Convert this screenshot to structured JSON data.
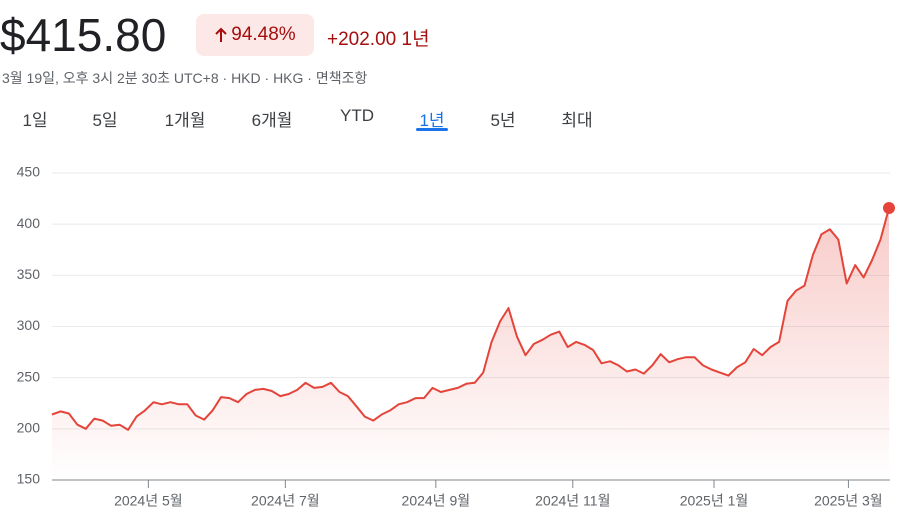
{
  "header": {
    "price": "$415.80",
    "change_percent": "94.48%",
    "change": "+202.00",
    "period": "1년",
    "timestamp": "3월 19일, 오후 3시 2분 30초 UTC+8 · HKD · HKG · 면책조항"
  },
  "tabs": {
    "items": [
      "1일",
      "5일",
      "1개월",
      "6개월",
      "YTD",
      "1년",
      "5년",
      "최대"
    ],
    "selected": 5
  },
  "chart_data": {
    "type": "line",
    "color": "#e4443a",
    "values": [
      214,
      217,
      215,
      204,
      200,
      210,
      208,
      203,
      204,
      199,
      212,
      218,
      226,
      224,
      226,
      224,
      224,
      213,
      209,
      218,
      231,
      230,
      226,
      234,
      238,
      239,
      237,
      232,
      234,
      238,
      245,
      240,
      241,
      245,
      236,
      232,
      222,
      212,
      208,
      214,
      218,
      224,
      226,
      230,
      230,
      240,
      236,
      238,
      240,
      244,
      245,
      255,
      285,
      305,
      318,
      290,
      272,
      283,
      287,
      292,
      295,
      280,
      285,
      282,
      277,
      264,
      266,
      262,
      256,
      258,
      254,
      262,
      273,
      265,
      268,
      270,
      270,
      262,
      258,
      255,
      252,
      260,
      265,
      278,
      272,
      280,
      285,
      325,
      335,
      340,
      370,
      390,
      395,
      385,
      342,
      360,
      348,
      365,
      385,
      415.8
    ],
    "xlim": [
      0,
      99
    ],
    "xticks": [
      {
        "value": 11.4,
        "label": "2024년 5월"
      },
      {
        "value": 27.6,
        "label": "2024년 7월"
      },
      {
        "value": 45.4,
        "label": "2024년 9월"
      },
      {
        "value": 61.6,
        "label": "2024년 11월"
      },
      {
        "value": 78.3,
        "label": "2025년 1월"
      },
      {
        "value": 94.2,
        "label": "2025년 3월"
      }
    ],
    "ylim": [
      150,
      450
    ],
    "yticks": [
      150,
      200,
      250,
      300,
      350,
      400,
      450
    ],
    "grid": true
  }
}
